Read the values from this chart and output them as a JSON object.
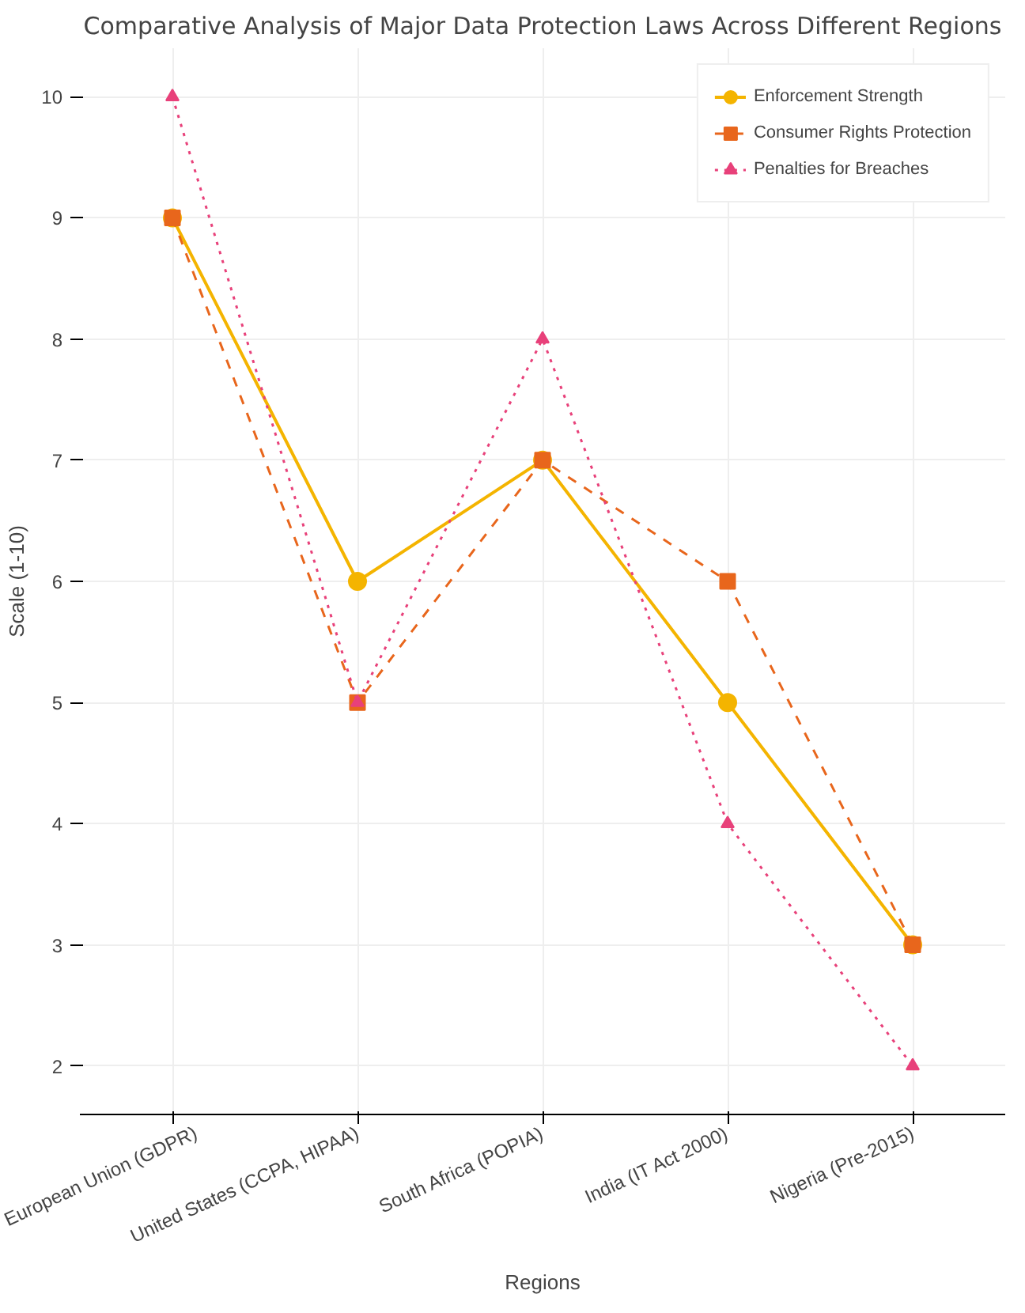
{
  "chart_data": {
    "type": "line",
    "title": "Comparative Analysis of Major Data Protection Laws Across Different Regions",
    "xlabel": "Regions",
    "ylabel": "Scale (1-10)",
    "categories": [
      "European Union (GDPR)",
      "United States (CCPA, HIPAA)",
      "South Africa (POPIA)",
      "India (IT Act 2000)",
      "Nigeria (Pre-2015)"
    ],
    "series": [
      {
        "name": "Enforcement Strength",
        "color": "#f4b400",
        "values": [
          9,
          6,
          7,
          5,
          3
        ],
        "marker": "circle",
        "line_style": "solid"
      },
      {
        "name": "Consumer Rights Protection",
        "color": "#e8661c",
        "values": [
          9,
          5,
          7,
          6,
          3
        ],
        "marker": "square",
        "line_style": "dashed"
      },
      {
        "name": "Penalties for Breaches",
        "color": "#e8417a",
        "values": [
          10,
          5,
          8,
          4,
          2
        ],
        "marker": "triangle",
        "line_style": "dotted"
      }
    ],
    "ylim": [
      1.6,
      10.4
    ],
    "yticks": [
      2,
      3,
      4,
      5,
      6,
      7,
      8,
      9,
      10
    ],
    "grid": true,
    "legend": "top right"
  }
}
